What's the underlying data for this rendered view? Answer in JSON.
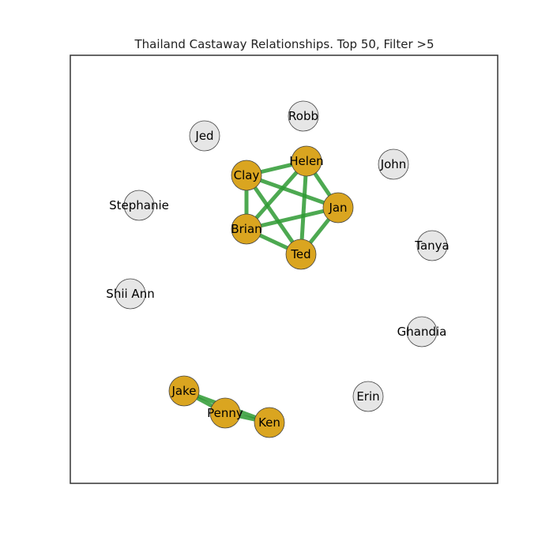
{
  "title": "Thailand Castaway Relationships. Top 50, Filter >5",
  "colors": {
    "active_node": "#DAA520",
    "inactive_node": "#E6E6E6",
    "edge": "#2E9A33",
    "frame": "#333333"
  },
  "nodes": [
    {
      "id": "Robb",
      "label": "Robb",
      "status": "inactive"
    },
    {
      "id": "Jed",
      "label": "Jed",
      "status": "inactive"
    },
    {
      "id": "Helen",
      "label": "Helen",
      "status": "active"
    },
    {
      "id": "Clay",
      "label": "Clay",
      "status": "active"
    },
    {
      "id": "John",
      "label": "John",
      "status": "inactive"
    },
    {
      "id": "Stephanie",
      "label": "Stephanie",
      "status": "inactive"
    },
    {
      "id": "Jan",
      "label": "Jan",
      "status": "active"
    },
    {
      "id": "Brian",
      "label": "Brian",
      "status": "active"
    },
    {
      "id": "Tanya",
      "label": "Tanya",
      "status": "inactive"
    },
    {
      "id": "Ted",
      "label": "Ted",
      "status": "active"
    },
    {
      "id": "Shii Ann",
      "label": "Shii Ann",
      "status": "inactive"
    },
    {
      "id": "Ghandia",
      "label": "Ghandia",
      "status": "inactive"
    },
    {
      "id": "Jake",
      "label": "Jake",
      "status": "active"
    },
    {
      "id": "Erin",
      "label": "Erin",
      "status": "inactive"
    },
    {
      "id": "Penny",
      "label": "Penny",
      "status": "active"
    },
    {
      "id": "Ken",
      "label": "Ken",
      "status": "active"
    }
  ],
  "edges": [
    {
      "source": "Clay",
      "target": "Helen"
    },
    {
      "source": "Clay",
      "target": "Jan"
    },
    {
      "source": "Clay",
      "target": "Brian"
    },
    {
      "source": "Clay",
      "target": "Ted"
    },
    {
      "source": "Helen",
      "target": "Jan"
    },
    {
      "source": "Helen",
      "target": "Brian"
    },
    {
      "source": "Helen",
      "target": "Ted"
    },
    {
      "source": "Jan",
      "target": "Brian"
    },
    {
      "source": "Jan",
      "target": "Ted"
    },
    {
      "source": "Brian",
      "target": "Ted"
    },
    {
      "source": "Jake",
      "target": "Penny"
    },
    {
      "source": "Jake",
      "target": "Ken"
    },
    {
      "source": "Penny",
      "target": "Ken"
    }
  ]
}
